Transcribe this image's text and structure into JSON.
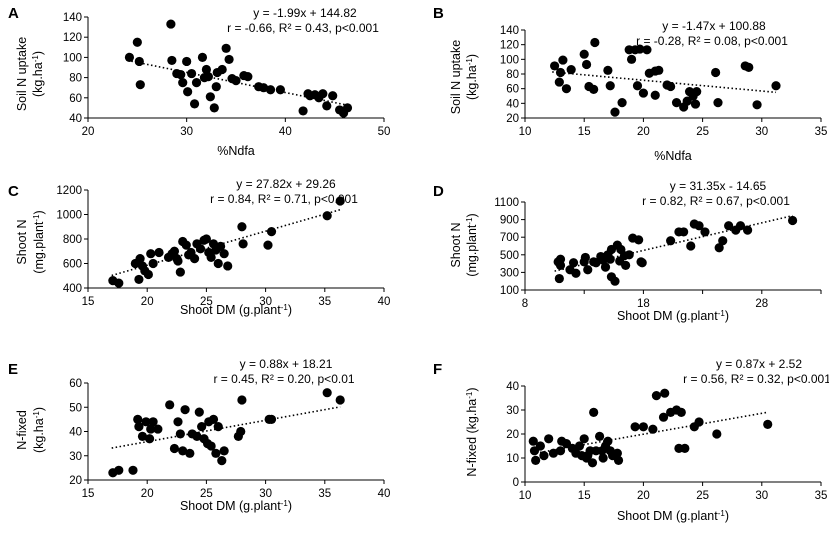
{
  "chart_data": [
    {
      "panel": "A",
      "type": "scatter",
      "xlabel": "%Ndfa",
      "ylabel_line1": "Soil N uptake",
      "ylabel_line2": "(kg.ha",
      "ylabel_sup": "-1",
      "ylabel_end": ")",
      "xlim": [
        20,
        50
      ],
      "ylim": [
        40,
        140
      ],
      "xticks": [
        20,
        30,
        40,
        50
      ],
      "yticks": [
        40,
        60,
        80,
        100,
        120,
        140
      ],
      "equation": "y = -1.99x + 144.82",
      "stats": "r = -0.66, R² = 0.43, p<0.001",
      "trend": {
        "slope": -1.99,
        "intercept": 144.82,
        "x_range": [
          24,
          46.5
        ]
      },
      "points": [
        [
          24.2,
          100
        ],
        [
          25,
          115
        ],
        [
          25.2,
          96
        ],
        [
          25.3,
          73
        ],
        [
          28.4,
          133
        ],
        [
          28.5,
          97
        ],
        [
          29,
          84
        ],
        [
          29.4,
          83
        ],
        [
          29.6,
          75
        ],
        [
          30,
          96
        ],
        [
          30.1,
          66
        ],
        [
          30.5,
          84
        ],
        [
          30.8,
          54
        ],
        [
          31,
          75
        ],
        [
          31.6,
          100
        ],
        [
          31.8,
          80
        ],
        [
          32,
          88
        ],
        [
          32.2,
          81
        ],
        [
          32.4,
          61
        ],
        [
          32.8,
          50
        ],
        [
          33,
          71
        ],
        [
          33.1,
          85
        ],
        [
          33.6,
          88
        ],
        [
          34,
          109
        ],
        [
          34.3,
          98
        ],
        [
          34.6,
          79
        ],
        [
          35,
          77
        ],
        [
          35.8,
          82
        ],
        [
          36.2,
          81
        ],
        [
          37.3,
          71
        ],
        [
          37.8,
          70
        ],
        [
          38.5,
          68
        ],
        [
          39.5,
          68
        ],
        [
          41.8,
          47
        ],
        [
          42.3,
          64
        ],
        [
          42.5,
          62
        ],
        [
          43,
          63
        ],
        [
          43.4,
          60
        ],
        [
          43.8,
          64
        ],
        [
          44.2,
          52
        ],
        [
          44.8,
          62
        ],
        [
          45.5,
          48
        ],
        [
          45.9,
          45
        ],
        [
          46.3,
          50
        ]
      ]
    },
    {
      "panel": "B",
      "type": "scatter",
      "xlabel": "%Ndfa",
      "ylabel_line1": "Soil N uptake",
      "ylabel_line2": "(kg.ha",
      "ylabel_sup": "-1",
      "ylabel_end": ")",
      "xlim": [
        10,
        35
      ],
      "ylim": [
        20,
        140
      ],
      "xticks": [
        10,
        15,
        20,
        25,
        30,
        35
      ],
      "yticks": [
        20,
        40,
        60,
        80,
        100,
        120,
        140
      ],
      "equation": "y = -1.47x + 100.88",
      "stats": "r = -0.28, R² = 0.08, p<0.001",
      "trend": {
        "slope": -1.47,
        "intercept": 100.88,
        "x_range": [
          12.3,
          31.2
        ]
      },
      "points": [
        [
          12.5,
          91
        ],
        [
          12.9,
          69
        ],
        [
          13,
          82
        ],
        [
          13.2,
          99
        ],
        [
          13.5,
          60
        ],
        [
          13.9,
          86
        ],
        [
          15,
          107
        ],
        [
          15.2,
          93
        ],
        [
          15.4,
          63
        ],
        [
          15.8,
          59
        ],
        [
          15.9,
          123
        ],
        [
          17,
          85
        ],
        [
          17.2,
          64
        ],
        [
          17.6,
          28
        ],
        [
          18.2,
          41
        ],
        [
          18.8,
          113
        ],
        [
          19,
          100
        ],
        [
          19.3,
          113
        ],
        [
          19.5,
          64
        ],
        [
          19.7,
          114
        ],
        [
          20,
          54
        ],
        [
          20.3,
          113
        ],
        [
          20.5,
          81
        ],
        [
          21,
          51
        ],
        [
          21,
          84
        ],
        [
          21.3,
          85
        ],
        [
          22,
          65
        ],
        [
          22.3,
          63
        ],
        [
          22.8,
          41
        ],
        [
          23.4,
          35
        ],
        [
          23.7,
          43
        ],
        [
          23.9,
          56
        ],
        [
          24.2,
          50
        ],
        [
          24.4,
          39
        ],
        [
          24.5,
          56
        ],
        [
          26.1,
          82
        ],
        [
          26.3,
          41
        ],
        [
          28.6,
          91
        ],
        [
          28.9,
          89
        ],
        [
          29.6,
          38
        ],
        [
          31.2,
          64
        ]
      ]
    },
    {
      "panel": "C",
      "type": "scatter",
      "xlabel": "Shoot DM (g.plant",
      "xlabel_sup": "-1",
      "xlabel_end": ")",
      "ylabel_line1": "Shoot N",
      "ylabel_line2": "(mg.plant",
      "ylabel_sup": "-1",
      "ylabel_end": ")",
      "xlim": [
        15,
        40
      ],
      "ylim": [
        400,
        1200
      ],
      "xticks": [
        15,
        20,
        25,
        30,
        35,
        40
      ],
      "yticks": [
        400,
        600,
        800,
        1000,
        1200
      ],
      "equation": "y = 27.82x + 29.26",
      "stats": "r = 0.84, R² = 0.71, p<0.001",
      "trend": {
        "slope": 27.82,
        "intercept": 29.26,
        "x_range": [
          17,
          36.3
        ]
      },
      "points": [
        [
          17.1,
          460
        ],
        [
          17.6,
          440
        ],
        [
          19,
          600
        ],
        [
          19.3,
          470
        ],
        [
          19.4,
          640
        ],
        [
          19.6,
          580
        ],
        [
          19.8,
          540
        ],
        [
          20.1,
          510
        ],
        [
          20.3,
          680
        ],
        [
          20.5,
          600
        ],
        [
          21,
          690
        ],
        [
          21.8,
          650
        ],
        [
          22.1,
          680
        ],
        [
          22.3,
          700
        ],
        [
          22.5,
          640
        ],
        [
          22.6,
          620
        ],
        [
          22.8,
          530
        ],
        [
          23,
          780
        ],
        [
          23.3,
          750
        ],
        [
          23.5,
          670
        ],
        [
          23.7,
          690
        ],
        [
          24,
          640
        ],
        [
          24.2,
          760
        ],
        [
          24.5,
          720
        ],
        [
          24.8,
          790
        ],
        [
          25,
          800
        ],
        [
          25.2,
          690
        ],
        [
          25.4,
          650
        ],
        [
          25.6,
          760
        ],
        [
          25.8,
          710
        ],
        [
          26,
          600
        ],
        [
          26.2,
          740
        ],
        [
          26.5,
          680
        ],
        [
          26.8,
          580
        ],
        [
          28,
          900
        ],
        [
          28.1,
          760
        ],
        [
          30.2,
          750
        ],
        [
          30.5,
          860
        ],
        [
          35.2,
          990
        ],
        [
          36.3,
          1110
        ]
      ]
    },
    {
      "panel": "D",
      "type": "scatter",
      "xlabel": "Shoot DM (g.plant",
      "xlabel_sup": "-1",
      "xlabel_end": ")",
      "ylabel_line1": "Shoot N",
      "ylabel_line2": "(mg.plant",
      "ylabel_sup": "-1",
      "ylabel_end": ")",
      "xlim": [
        8,
        33
      ],
      "ylim": [
        100,
        1100
      ],
      "xticks": [
        8,
        18,
        28
      ],
      "xticks_minor": [
        13,
        23,
        33
      ],
      "yticks": [
        100,
        300,
        500,
        700,
        900,
        1100
      ],
      "equation": "y = 31.35x - 14.65",
      "stats": "r = 0.82, R² = 0.67, p<0.001",
      "trend": {
        "slope": 31.35,
        "intercept": -14.65,
        "x_range": [
          10.5,
          30.6
        ]
      },
      "points": [
        [
          10.8,
          420
        ],
        [
          10.9,
          230
        ],
        [
          11,
          380
        ],
        [
          11,
          450
        ],
        [
          11.8,
          330
        ],
        [
          12.1,
          410
        ],
        [
          12.3,
          290
        ],
        [
          13,
          420
        ],
        [
          13.1,
          470
        ],
        [
          13.3,
          330
        ],
        [
          13.8,
          420
        ],
        [
          14,
          410
        ],
        [
          14.4,
          480
        ],
        [
          14.6,
          440
        ],
        [
          14.8,
          360
        ],
        [
          15,
          500
        ],
        [
          15.2,
          450
        ],
        [
          15.3,
          250
        ],
        [
          15.3,
          560
        ],
        [
          15.6,
          200
        ],
        [
          15.8,
          610
        ],
        [
          16,
          430
        ],
        [
          16.1,
          560
        ],
        [
          16.4,
          490
        ],
        [
          16.5,
          380
        ],
        [
          16.8,
          500
        ],
        [
          17.1,
          690
        ],
        [
          17.6,
          670
        ],
        [
          17.8,
          420
        ],
        [
          17.9,
          410
        ],
        [
          20.3,
          660
        ],
        [
          21,
          760
        ],
        [
          21.4,
          760
        ],
        [
          22,
          600
        ],
        [
          22.3,
          850
        ],
        [
          22.7,
          830
        ],
        [
          23.2,
          760
        ],
        [
          24.4,
          580
        ],
        [
          24.7,
          660
        ],
        [
          25.2,
          830
        ],
        [
          25.8,
          780
        ],
        [
          26.2,
          830
        ],
        [
          26.8,
          780
        ],
        [
          30.6,
          890
        ]
      ]
    },
    {
      "panel": "E",
      "type": "scatter",
      "xlabel": "Shoot DM (g.plant",
      "xlabel_sup": "-1",
      "xlabel_end": ")",
      "ylabel_line1": "N-fixed",
      "ylabel_line2": "(kg.ha",
      "ylabel_sup": "-1",
      "ylabel_end": ")",
      "xlim": [
        15,
        40
      ],
      "ylim": [
        20,
        60
      ],
      "xticks": [
        15,
        20,
        25,
        30,
        35,
        40
      ],
      "yticks": [
        20,
        30,
        40,
        50,
        60
      ],
      "equation": "y = 0.88x + 18.21",
      "stats": "r = 0.45, R² = 0.20, p<0.01",
      "trend": {
        "slope": 0.88,
        "intercept": 18.21,
        "x_range": [
          17,
          36.3
        ]
      },
      "points": [
        [
          17.1,
          23
        ],
        [
          17.6,
          24
        ],
        [
          18.8,
          24
        ],
        [
          19.2,
          45
        ],
        [
          19.3,
          42
        ],
        [
          19.6,
          38
        ],
        [
          19.9,
          44
        ],
        [
          20.2,
          37
        ],
        [
          20.3,
          41
        ],
        [
          20.5,
          44
        ],
        [
          20.9,
          41
        ],
        [
          21.9,
          51
        ],
        [
          22.3,
          33
        ],
        [
          22.6,
          44
        ],
        [
          22.8,
          39
        ],
        [
          23,
          32
        ],
        [
          23.2,
          49
        ],
        [
          23.6,
          31
        ],
        [
          23.8,
          39
        ],
        [
          24.2,
          38
        ],
        [
          24.4,
          48
        ],
        [
          24.6,
          42
        ],
        [
          24.8,
          37
        ],
        [
          25.1,
          35
        ],
        [
          25.2,
          44
        ],
        [
          25.4,
          34
        ],
        [
          25.6,
          45
        ],
        [
          25.8,
          31
        ],
        [
          26,
          42
        ],
        [
          26.3,
          28
        ],
        [
          26.5,
          32
        ],
        [
          27.7,
          38
        ],
        [
          27.9,
          40
        ],
        [
          28,
          53
        ],
        [
          30.3,
          45
        ],
        [
          30.5,
          45
        ],
        [
          35.2,
          56
        ],
        [
          36.3,
          53
        ]
      ]
    },
    {
      "panel": "F",
      "type": "scatter",
      "xlabel": "Shoot DM (g.plant",
      "xlabel_sup": "-1",
      "xlabel_end": ")",
      "ylabel_line1": "N-fixed (kg.ha",
      "ylabel_line2": "",
      "ylabel_sup": "-1",
      "ylabel_end": ")",
      "xlim": [
        10,
        35
      ],
      "ylim": [
        0,
        40
      ],
      "xticks": [
        10,
        15,
        20,
        25,
        30,
        35
      ],
      "yticks": [
        0,
        10,
        20,
        30,
        40
      ],
      "equation": "y = 0.87x + 2.52",
      "stats": "r = 0.56, R² = 0.32, p<0.001",
      "trend": {
        "slope": 0.87,
        "intercept": 2.52,
        "x_range": [
          10.6,
          30.5
        ]
      },
      "points": [
        [
          10.7,
          17
        ],
        [
          10.8,
          13
        ],
        [
          10.9,
          9
        ],
        [
          11.3,
          15
        ],
        [
          11.6,
          11
        ],
        [
          12,
          18
        ],
        [
          12.4,
          12
        ],
        [
          13,
          13
        ],
        [
          13.1,
          17
        ],
        [
          13.5,
          16
        ],
        [
          14,
          14
        ],
        [
          14.3,
          12
        ],
        [
          14.6,
          15
        ],
        [
          14.8,
          11
        ],
        [
          15,
          18
        ],
        [
          15.2,
          10
        ],
        [
          15.3,
          11
        ],
        [
          15.5,
          13
        ],
        [
          15.7,
          8
        ],
        [
          15.8,
          29
        ],
        [
          16,
          13
        ],
        [
          16.3,
          19
        ],
        [
          16.5,
          13
        ],
        [
          16.6,
          10
        ],
        [
          16.8,
          15
        ],
        [
          17,
          17
        ],
        [
          17.2,
          13
        ],
        [
          17.4,
          11
        ],
        [
          17.8,
          12
        ],
        [
          17.9,
          9
        ],
        [
          19.3,
          23
        ],
        [
          20,
          23
        ],
        [
          20.8,
          22
        ],
        [
          21.1,
          36
        ],
        [
          21.7,
          27
        ],
        [
          21.8,
          37
        ],
        [
          22.3,
          29
        ],
        [
          22.8,
          30
        ],
        [
          23,
          14
        ],
        [
          23.2,
          29
        ],
        [
          23.5,
          14
        ],
        [
          24.3,
          23
        ],
        [
          24.7,
          25
        ],
        [
          26.2,
          20
        ],
        [
          30.5,
          24
        ]
      ]
    }
  ]
}
